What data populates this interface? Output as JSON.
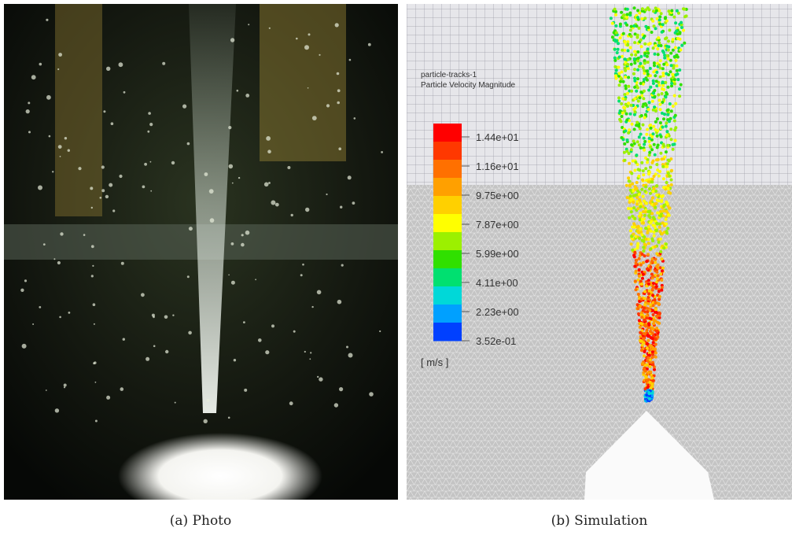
{
  "figure": {
    "panels": [
      {
        "caption": "(a) Photo"
      },
      {
        "caption": "(b) Simulation",
        "legend": {
          "title": "particle-tracks-1",
          "subtitle": "Particle Velocity Magnitude",
          "labels": [
            "1.44e+01",
            "1.16e+01",
            "9.75e+00",
            "7.87e+00",
            "5.99e+00",
            "4.11e+00",
            "2.23e+00",
            "3.52e-01"
          ],
          "unit": "[ m/s ]"
        }
      }
    ]
  }
}
